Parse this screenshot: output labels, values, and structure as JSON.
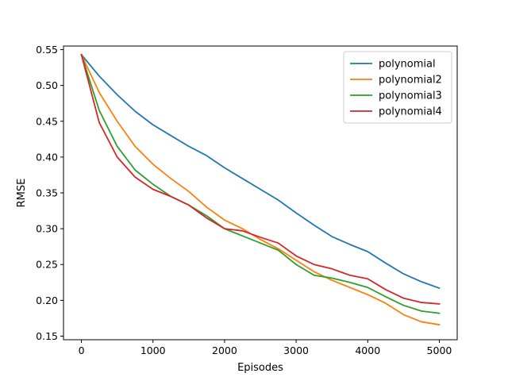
{
  "chart_data": {
    "type": "line",
    "xlabel": "Episodes",
    "ylabel": "RMSE",
    "xlim": [
      -250,
      5250
    ],
    "ylim": [
      0.145,
      0.555
    ],
    "xticks": [
      0,
      1000,
      2000,
      3000,
      4000,
      5000
    ],
    "yticks": [
      0.15,
      0.2,
      0.25,
      0.3,
      0.35,
      0.4,
      0.45,
      0.5,
      0.55
    ],
    "grid": false,
    "legend_position": "top-right",
    "x": [
      0,
      250,
      500,
      750,
      1000,
      1250,
      1500,
      1750,
      2000,
      2250,
      2500,
      2750,
      3000,
      3250,
      3500,
      3750,
      4000,
      4250,
      4500,
      4750,
      5000
    ],
    "series": [
      {
        "name": "polynomial",
        "color": "#1f77b4",
        "values": [
          0.543,
          0.513,
          0.487,
          0.464,
          0.445,
          0.43,
          0.415,
          0.402,
          0.385,
          0.37,
          0.355,
          0.34,
          0.322,
          0.305,
          0.289,
          0.278,
          0.268,
          0.252,
          0.237,
          0.226,
          0.217
        ]
      },
      {
        "name": "polynomial2",
        "color": "#ff7f0e",
        "values": [
          0.543,
          0.49,
          0.45,
          0.415,
          0.39,
          0.37,
          0.352,
          0.33,
          0.312,
          0.3,
          0.285,
          0.272,
          0.256,
          0.24,
          0.228,
          0.218,
          0.208,
          0.196,
          0.18,
          0.17,
          0.166
        ]
      },
      {
        "name": "polynomial3",
        "color": "#2ca02c",
        "values": [
          0.543,
          0.465,
          0.415,
          0.382,
          0.362,
          0.345,
          0.333,
          0.318,
          0.3,
          0.29,
          0.28,
          0.27,
          0.25,
          0.235,
          0.231,
          0.225,
          0.218,
          0.205,
          0.193,
          0.185,
          0.182
        ]
      },
      {
        "name": "polynomial4",
        "color": "#d62728",
        "values": [
          0.543,
          0.448,
          0.4,
          0.372,
          0.355,
          0.345,
          0.333,
          0.315,
          0.3,
          0.297,
          0.288,
          0.28,
          0.262,
          0.25,
          0.244,
          0.235,
          0.23,
          0.215,
          0.203,
          0.197,
          0.195
        ]
      }
    ]
  }
}
